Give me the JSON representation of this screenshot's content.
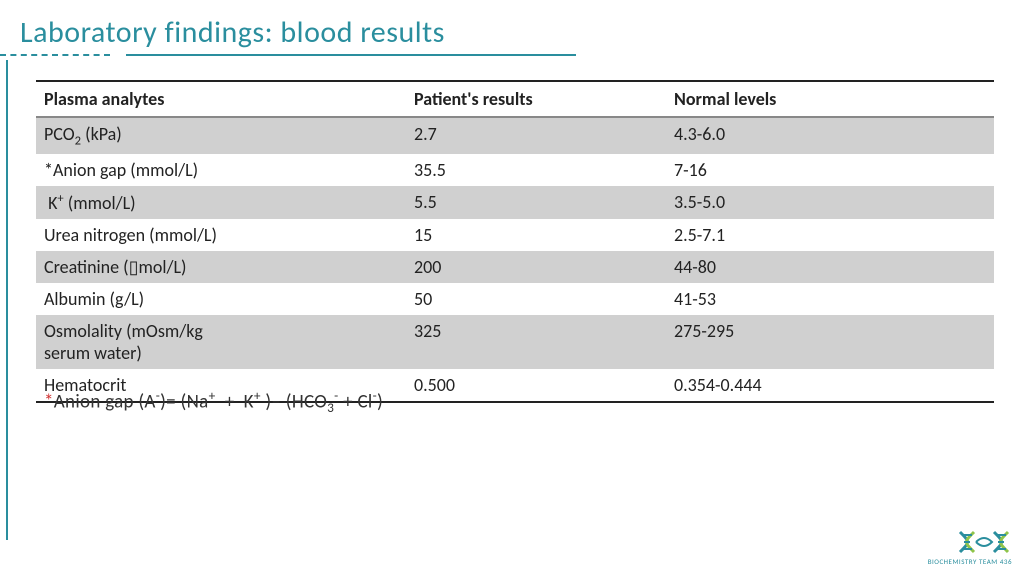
{
  "title": "Laboratory findings: blood results",
  "colors": {
    "accent": "#2a8e9e",
    "shade": "#d0d0d0",
    "text": "#222222",
    "ast": "#d03030"
  },
  "table": {
    "headers": [
      "Plasma analytes",
      "Patient's results",
      "Normal levels"
    ],
    "rows": [
      {
        "analyte_html": "PCO<sub>2</sub> (kPa)",
        "patient": "2.7",
        "normal": "4.3-6.0",
        "shade": true
      },
      {
        "analyte_html": "*Anion gap (mmol/L)",
        "patient": "35.5",
        "normal": "7-16",
        "shade": false
      },
      {
        "analyte_html": "&nbsp;K<sup>+</sup> (mmol/L)",
        "patient": "5.5",
        "normal": "3.5-5.0",
        "shade": true
      },
      {
        "analyte_html": "Urea nitrogen (mmol/L)",
        "patient": "15",
        "normal": "2.5-7.1",
        "shade": false
      },
      {
        "analyte_html": "Creatinine (&#x25AF;mol/L)",
        "patient": "200",
        "normal": "44-80",
        "shade": true
      },
      {
        "analyte_html": "Albumin (g/L)",
        "patient": "50",
        "normal": "41-53",
        "shade": false
      },
      {
        "analyte_html": "Osmolality (mOsm/kg<br>serum water)",
        "patient": "325",
        "normal": "275-295",
        "shade": true
      },
      {
        "analyte_html": "Hematocrit",
        "patient": "0.500",
        "normal": "0.354-0.444",
        "shade": false
      }
    ]
  },
  "footnote_html": "<span class=\"ast\">*</span>Anion gap (A<sup>-</sup>)= (Na<sup>+</sup>&nbsp;&nbsp;+&nbsp;&nbsp;K<sup>+</sup> )– (HCO<sub>3</sub><sup>-</sup> + Cl<sup>-</sup>)",
  "logo_text": "BIOCHEMISTRY TEAM 436"
}
